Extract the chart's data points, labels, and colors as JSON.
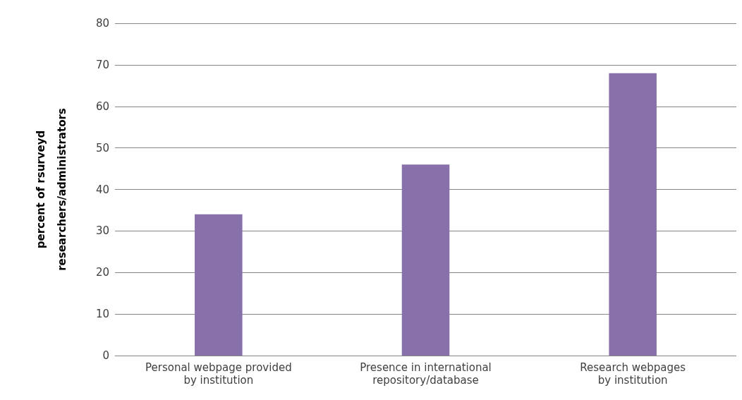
{
  "chart_data": {
    "type": "bar",
    "ylabel": "percent of rsurveyd\nresearchers/administrators",
    "categories": [
      "Personal webpage provided\nby institution",
      "Presence in international\nrepository/database",
      "Research webpages\nby institution"
    ],
    "values": [
      34,
      46,
      68
    ],
    "color": "#8870ab",
    "ylim": [
      0,
      80
    ],
    "yticks": [
      0,
      10,
      20,
      30,
      40,
      50,
      60,
      70,
      80
    ],
    "grid": "y"
  }
}
